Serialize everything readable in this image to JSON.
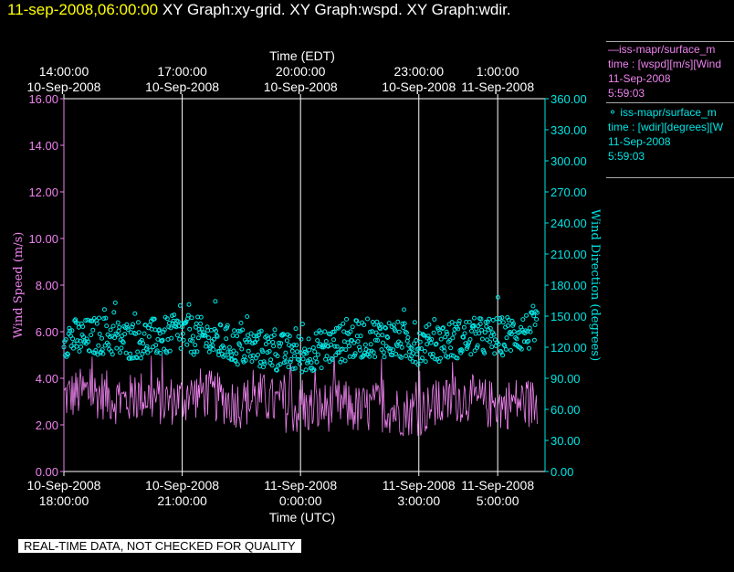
{
  "header": {
    "datetime": "11-sep-2008,06:00:00",
    "graphs": "XY Graph:xy-grid.  XY Graph:wspd.  XY Graph:wdir."
  },
  "legend": {
    "wspd": {
      "line1": "—iss-mapr/surface_m",
      "line2": "time : [wspd][m/s][Wind",
      "line3": "11-Sep-2008",
      "line4": "5:59:03"
    },
    "wdir": {
      "line1": "⚬ iss-mapr/surface_m",
      "line2": "time : [wdir][degrees][W",
      "line3": "11-Sep-2008",
      "line4": "5:59:03"
    }
  },
  "disclaimer": "REAL-TIME DATA, NOT CHECKED FOR QUALITY",
  "colors": {
    "wspd": "#ee82ee",
    "wdir": "#00e5e5",
    "grid": "#ffffff",
    "background": "#000000"
  },
  "chart_data": {
    "type": "line",
    "x_label_bottom": "Time (UTC)",
    "x_label_top": "Time (EDT)",
    "y_label_left": "Wind Speed (m/s)",
    "y_label_right": "Wind Direction (degrees)",
    "x_range_utc_hours": [
      18.0,
      30.2
    ],
    "ylim_left": [
      0,
      16
    ],
    "ylim_right": [
      0,
      360
    ],
    "y_ticks_left": [
      "0.00",
      "2.00",
      "4.00",
      "6.00",
      "8.00",
      "10.00",
      "12.00",
      "14.00",
      "16.00"
    ],
    "y_ticks_right": [
      "0.00",
      "30.00",
      "60.00",
      "90.00",
      "120.00",
      "150.00",
      "180.00",
      "210.00",
      "240.00",
      "270.00",
      "300.00",
      "330.00",
      "360.00"
    ],
    "bottom_ticks": [
      {
        "utc_hour": 18,
        "date": "10-Sep-2008",
        "time": "18:00:00"
      },
      {
        "utc_hour": 21,
        "date": "10-Sep-2008",
        "time": "21:00:00"
      },
      {
        "utc_hour": 24,
        "date": "11-Sep-2008",
        "time": "0:00:00"
      },
      {
        "utc_hour": 27,
        "date": "11-Sep-2008",
        "time": "3:00:00"
      },
      {
        "utc_hour": 29,
        "date": "11-Sep-2008",
        "time": "5:00:00"
      }
    ],
    "top_ticks": [
      {
        "utc_hour": 18,
        "time": "14:00:00",
        "date": "10-Sep-2008"
      },
      {
        "utc_hour": 21,
        "time": "17:00:00",
        "date": "10-Sep-2008"
      },
      {
        "utc_hour": 24,
        "time": "20:00:00",
        "date": "10-Sep-2008"
      },
      {
        "utc_hour": 27,
        "time": "23:00:00",
        "date": "10-Sep-2008"
      },
      {
        "utc_hour": 29,
        "time": "1:00:00",
        "date": "11-Sep-2008"
      }
    ],
    "grid": true,
    "series": [
      {
        "name": "wspd",
        "axis": "left",
        "style": "line",
        "x_utc_hours": [
          18.0,
          18.5,
          19.0,
          19.5,
          20.0,
          20.5,
          21.0,
          21.5,
          22.0,
          22.5,
          23.0,
          23.5,
          24.0,
          24.5,
          25.0,
          25.5,
          26.0,
          26.5,
          27.0,
          27.5,
          28.0,
          28.5,
          29.0,
          29.5,
          30.0
        ],
        "values": [
          3.2,
          3.4,
          3.3,
          3.0,
          3.3,
          3.0,
          3.1,
          3.4,
          3.1,
          2.9,
          3.2,
          2.8,
          2.6,
          2.7,
          2.9,
          2.6,
          2.8,
          2.6,
          2.6,
          2.8,
          3.2,
          3.0,
          2.8,
          3.0,
          2.9
        ]
      },
      {
        "name": "wdir",
        "axis": "right",
        "style": "scatter",
        "x_utc_hours": [
          18.0,
          18.5,
          19.0,
          19.5,
          20.0,
          20.5,
          21.0,
          21.5,
          22.0,
          22.5,
          23.0,
          23.5,
          24.0,
          24.5,
          25.0,
          25.5,
          26.0,
          26.5,
          27.0,
          27.5,
          28.0,
          28.5,
          29.0,
          29.5,
          30.0
        ],
        "values": [
          130,
          128,
          132,
          126,
          128,
          130,
          133,
          130,
          124,
          120,
          118,
          115,
          113,
          118,
          124,
          128,
          130,
          126,
          122,
          125,
          128,
          130,
          130,
          134,
          136
        ]
      }
    ]
  }
}
